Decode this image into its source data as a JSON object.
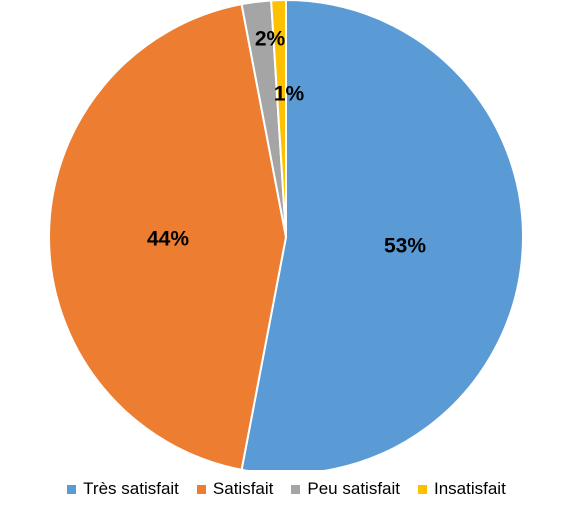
{
  "chart_data": {
    "type": "pie",
    "categories": [
      "Très satisfait",
      "Satisfait",
      "Peu satisfait",
      "Insatisfait"
    ],
    "values": [
      53,
      44,
      2,
      1
    ],
    "data_labels": [
      "53%",
      "44%",
      "2%",
      "1%"
    ],
    "colors": [
      "#5B9BD5",
      "#ED7D31",
      "#A5A5A5",
      "#FFC000"
    ],
    "legend_position": "bottom",
    "start_angle_deg": 0,
    "direction": "clockwise"
  }
}
